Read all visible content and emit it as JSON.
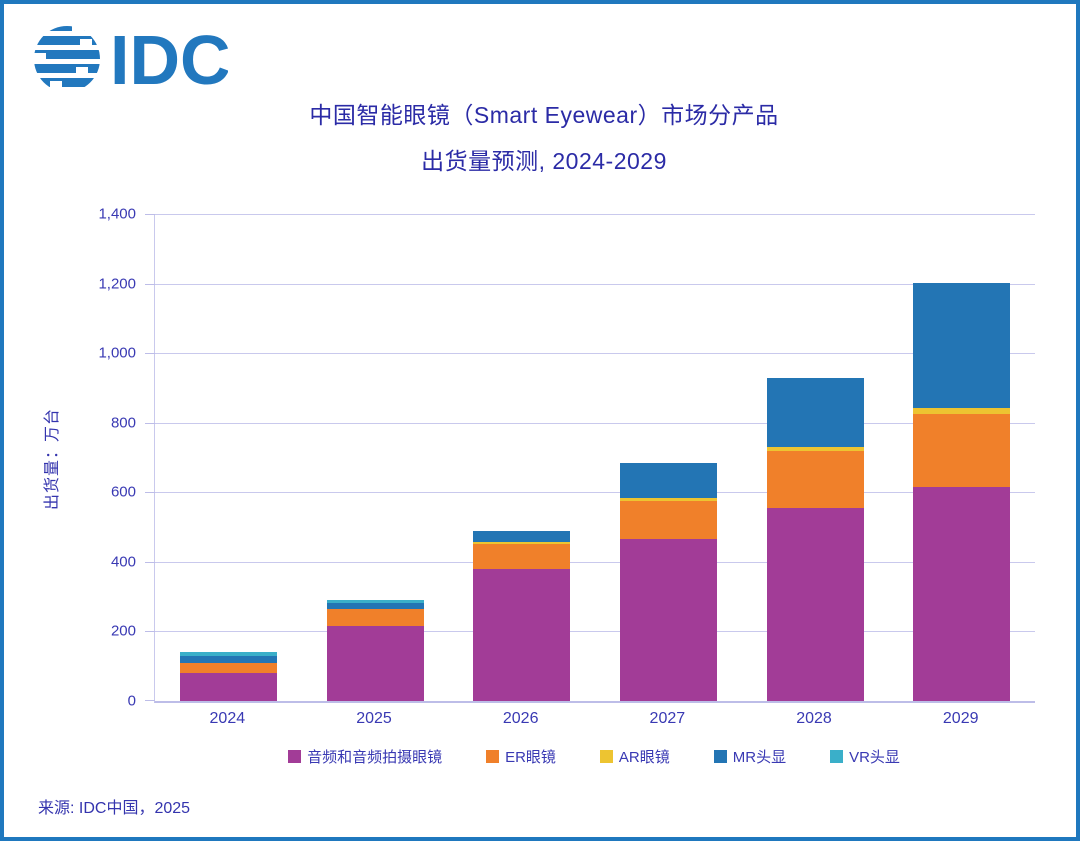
{
  "brand": {
    "logo_text": "IDC",
    "logo_color": "#2278BE",
    "frame_color": "#1F78BE"
  },
  "title": {
    "line1": "中国智能眼镜（Smart Eyewear）市场分产品",
    "line2": "出货量预测, 2024-2029",
    "color": "#2B2BA6"
  },
  "source": "来源:  IDC中国，2025",
  "chart_data": {
    "type": "bar",
    "stacked": true,
    "title": "中国智能眼镜（Smart Eyewear）市场分产品出货量预测, 2024-2029",
    "categories": [
      "2024",
      "2025",
      "2026",
      "2027",
      "2028",
      "2029"
    ],
    "series": [
      {
        "name": "音频和音频拍摄眼镜",
        "color": "#A23C97",
        "values": [
          80,
          217,
          380,
          465,
          555,
          615
        ]
      },
      {
        "name": "ER眼镜",
        "color": "#F0802A",
        "values": [
          30,
          48,
          70,
          110,
          165,
          210
        ]
      },
      {
        "name": "AR眼镜",
        "color": "#EDC431",
        "values": [
          0,
          0,
          6,
          10,
          10,
          17
        ]
      },
      {
        "name": "MR头显",
        "color": "#2375B4",
        "values": [
          20,
          18,
          33,
          100,
          200,
          360
        ]
      },
      {
        "name": "VR头显",
        "color": "#3AAFC9",
        "values": [
          10,
          7,
          0,
          0,
          0,
          0
        ]
      }
    ],
    "totals": [
      140,
      290,
      489,
      685,
      930,
      1202
    ],
    "xlabel": "",
    "ylabel": "出货量：万台",
    "ylim": [
      0,
      1400
    ],
    "ytick_step": 200,
    "yticks": [
      "0",
      "200",
      "400",
      "600",
      "800",
      "1,000",
      "1,200",
      "1,400"
    ],
    "grid": true,
    "gridline_color": "#C9C9ED",
    "legend_position": "bottom",
    "axis_text_color": "#3939B3"
  }
}
